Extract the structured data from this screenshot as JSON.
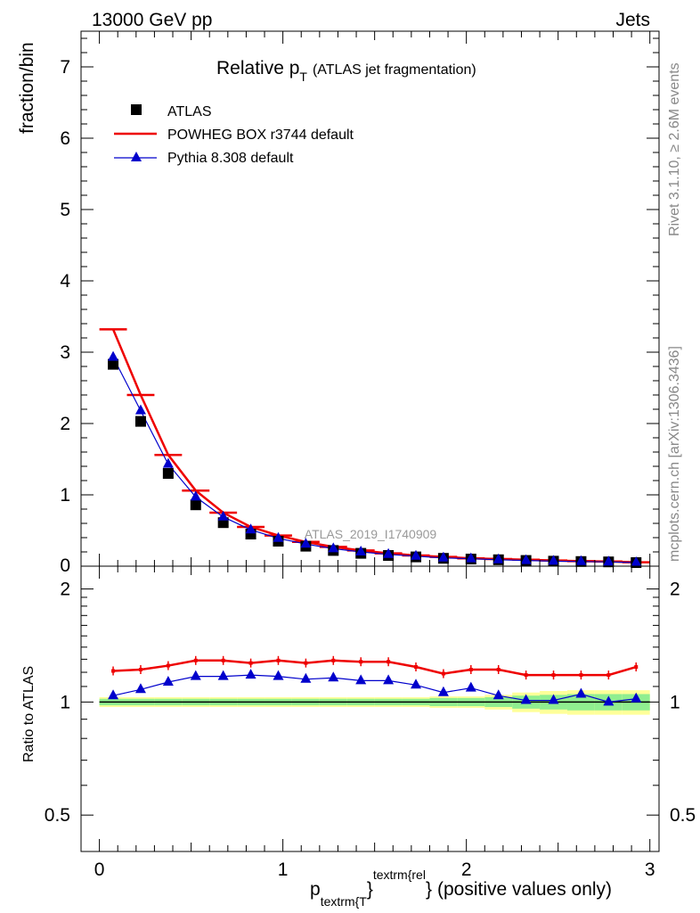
{
  "header": {
    "left": "13000 GeV pp",
    "right": "Jets"
  },
  "side_labels": {
    "rivet": "Rivet 3.1.10, ≥ 2.6M events",
    "mcplots": "mcplots.cern.ch [arXiv:1306.3436]"
  },
  "chart_data": [
    {
      "type": "line",
      "title_main": "Relative p",
      "title_sub": "T",
      "title_extra": "(ATLAS jet fragmentation)",
      "watermark": "ATLAS_2019_I1740909",
      "ylabel": "fraction/bin",
      "xlim": [
        -0.1,
        3.05
      ],
      "ylim": [
        0,
        7.5
      ],
      "yticks": [
        1,
        2,
        3,
        4,
        5,
        6,
        7
      ],
      "ytick_labels": [
        "1",
        "2",
        "3",
        "4",
        "5",
        "6",
        "7"
      ],
      "bottom_tick_label": "0",
      "legend_position": "top-left",
      "x": [
        0.075,
        0.225,
        0.375,
        0.525,
        0.675,
        0.825,
        0.975,
        1.125,
        1.275,
        1.425,
        1.575,
        1.725,
        1.875,
        2.025,
        2.175,
        2.325,
        2.475,
        2.625,
        2.775,
        2.925
      ],
      "series": [
        {
          "name": "ATLAS",
          "style": "markers",
          "color": "#000000",
          "values": [
            2.83,
            2.03,
            1.3,
            0.86,
            0.61,
            0.45,
            0.35,
            0.28,
            0.22,
            0.18,
            0.15,
            0.13,
            0.11,
            0.1,
            0.09,
            0.08,
            0.07,
            0.065,
            0.06,
            0.05
          ]
        },
        {
          "name": "POWHEG BOX r3744 default",
          "style": "line",
          "color": "#ee0000",
          "values": [
            3.32,
            2.4,
            1.56,
            1.06,
            0.75,
            0.55,
            0.43,
            0.34,
            0.27,
            0.22,
            0.18,
            0.15,
            0.13,
            0.11,
            0.1,
            0.09,
            0.08,
            0.07,
            0.065,
            0.055
          ]
        },
        {
          "name": "Pythia 8.308 default",
          "style": "line-triangles",
          "color": "#0000cc",
          "values": [
            2.93,
            2.18,
            1.43,
            0.97,
            0.69,
            0.51,
            0.39,
            0.31,
            0.245,
            0.2,
            0.165,
            0.14,
            0.115,
            0.105,
            0.09,
            0.08,
            0.07,
            0.065,
            0.06,
            0.05
          ]
        }
      ]
    },
    {
      "type": "line",
      "ylabel": "Ratio to ATLAS",
      "xlabel_main": "p",
      "xlabel_sub": "textrm{T",
      "xlabel_sup": "textrm{rel",
      "xlabel_brace_sub": "}",
      "xlabel_brace_sup": "}",
      "xlabel_tail": "(positive values only)",
      "xlim": [
        -0.1,
        3.05
      ],
      "ylim": [
        0.4,
        2.3
      ],
      "ylog": true,
      "yticks": [
        0.5,
        1,
        2
      ],
      "ytick_labels": [
        "0.5",
        "1",
        "2"
      ],
      "xticks": [
        0,
        1,
        2,
        3
      ],
      "xtick_labels": [
        "0",
        "1",
        "2",
        "3"
      ],
      "reference_line": 1,
      "bands": {
        "inner_color": "#90ee90",
        "outer_color": "#ffff99",
        "inner_halfwidth": [
          0.02,
          0.02,
          0.02,
          0.02,
          0.02,
          0.02,
          0.02,
          0.02,
          0.02,
          0.02,
          0.02,
          0.02,
          0.025,
          0.025,
          0.03,
          0.04,
          0.045,
          0.05,
          0.05,
          0.05
        ],
        "outer_halfwidth": [
          0.03,
          0.03,
          0.03,
          0.03,
          0.03,
          0.03,
          0.03,
          0.03,
          0.03,
          0.03,
          0.03,
          0.03,
          0.035,
          0.035,
          0.045,
          0.06,
          0.07,
          0.075,
          0.075,
          0.075
        ]
      },
      "x": [
        0.075,
        0.225,
        0.375,
        0.525,
        0.675,
        0.825,
        0.975,
        1.125,
        1.275,
        1.425,
        1.575,
        1.725,
        1.875,
        2.025,
        2.175,
        2.325,
        2.475,
        2.625,
        2.775,
        2.925
      ],
      "series": [
        {
          "name": "POWHEG BOX r3744 default",
          "color": "#ee0000",
          "values": [
            1.21,
            1.22,
            1.25,
            1.29,
            1.29,
            1.27,
            1.29,
            1.27,
            1.29,
            1.28,
            1.28,
            1.24,
            1.19,
            1.22,
            1.22,
            1.18,
            1.18,
            1.18,
            1.18,
            1.24
          ]
        },
        {
          "name": "Pythia 8.308 default",
          "color": "#0000cc",
          "values": [
            1.04,
            1.08,
            1.13,
            1.17,
            1.17,
            1.18,
            1.17,
            1.15,
            1.16,
            1.14,
            1.14,
            1.11,
            1.06,
            1.09,
            1.04,
            1.01,
            1.01,
            1.05,
            1.0,
            1.02
          ]
        }
      ]
    }
  ]
}
